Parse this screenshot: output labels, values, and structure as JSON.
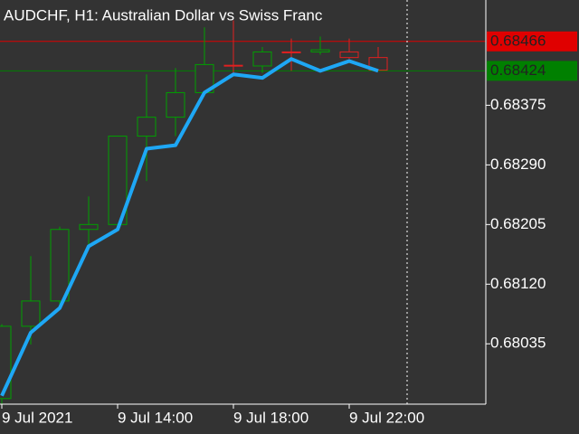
{
  "chart_data": {
    "type": "candlestick",
    "title": "AUDCHF, H1:  Australian Dollar vs Swiss Franc",
    "categories": [
      "9 Jul 2021",
      null,
      null,
      null,
      "9 Jul 14:00",
      null,
      null,
      null,
      "9 Jul 18:00",
      null,
      null,
      null,
      "9 Jul 22:00",
      null
    ],
    "open": [
      0.67957,
      0.6806,
      0.68096,
      0.68198,
      0.68205,
      0.68331,
      0.68358,
      0.68393,
      0.68432,
      0.68431,
      0.68451,
      0.68451,
      0.68451,
      0.68443
    ],
    "high": [
      0.68063,
      0.6816,
      0.68202,
      0.68245,
      0.68331,
      0.68419,
      0.68428,
      0.68486,
      0.68496,
      0.68458,
      0.6847,
      0.68473,
      0.6847,
      0.68458
    ],
    "low": [
      0.67949,
      0.68034,
      0.68086,
      0.68176,
      0.68202,
      0.68267,
      0.68331,
      0.68393,
      0.68421,
      0.68421,
      0.68424,
      0.68447,
      0.68441,
      0.68425
    ],
    "close": [
      0.6806,
      0.68096,
      0.68198,
      0.68205,
      0.68331,
      0.68358,
      0.68393,
      0.68433,
      0.68431,
      0.68451,
      0.6845,
      0.68454,
      0.68443,
      0.68425
    ],
    "bull_color": "#00a000",
    "bear_color": "#e02020",
    "overlay": {
      "type": "line",
      "color": "#1ea7f5",
      "values": [
        0.67961,
        0.68051,
        0.68086,
        0.68174,
        0.68198,
        0.68313,
        0.68318,
        0.68393,
        0.68419,
        0.68414,
        0.68441,
        0.68424,
        0.68438,
        0.68424
      ]
    },
    "price_lines": [
      {
        "value": 0.68466,
        "color": "#e00000"
      },
      {
        "value": 0.68424,
        "color": "#008000"
      }
    ],
    "ylim": [
      0.67949,
      0.68525
    ],
    "yticks": [
      0.68375,
      {
        "value": 0.6829,
        "label": "0.68290"
      },
      0.68205,
      {
        "value": 0.6812,
        "label": "0.68120"
      },
      0.68035
    ],
    "background": "#333333"
  }
}
